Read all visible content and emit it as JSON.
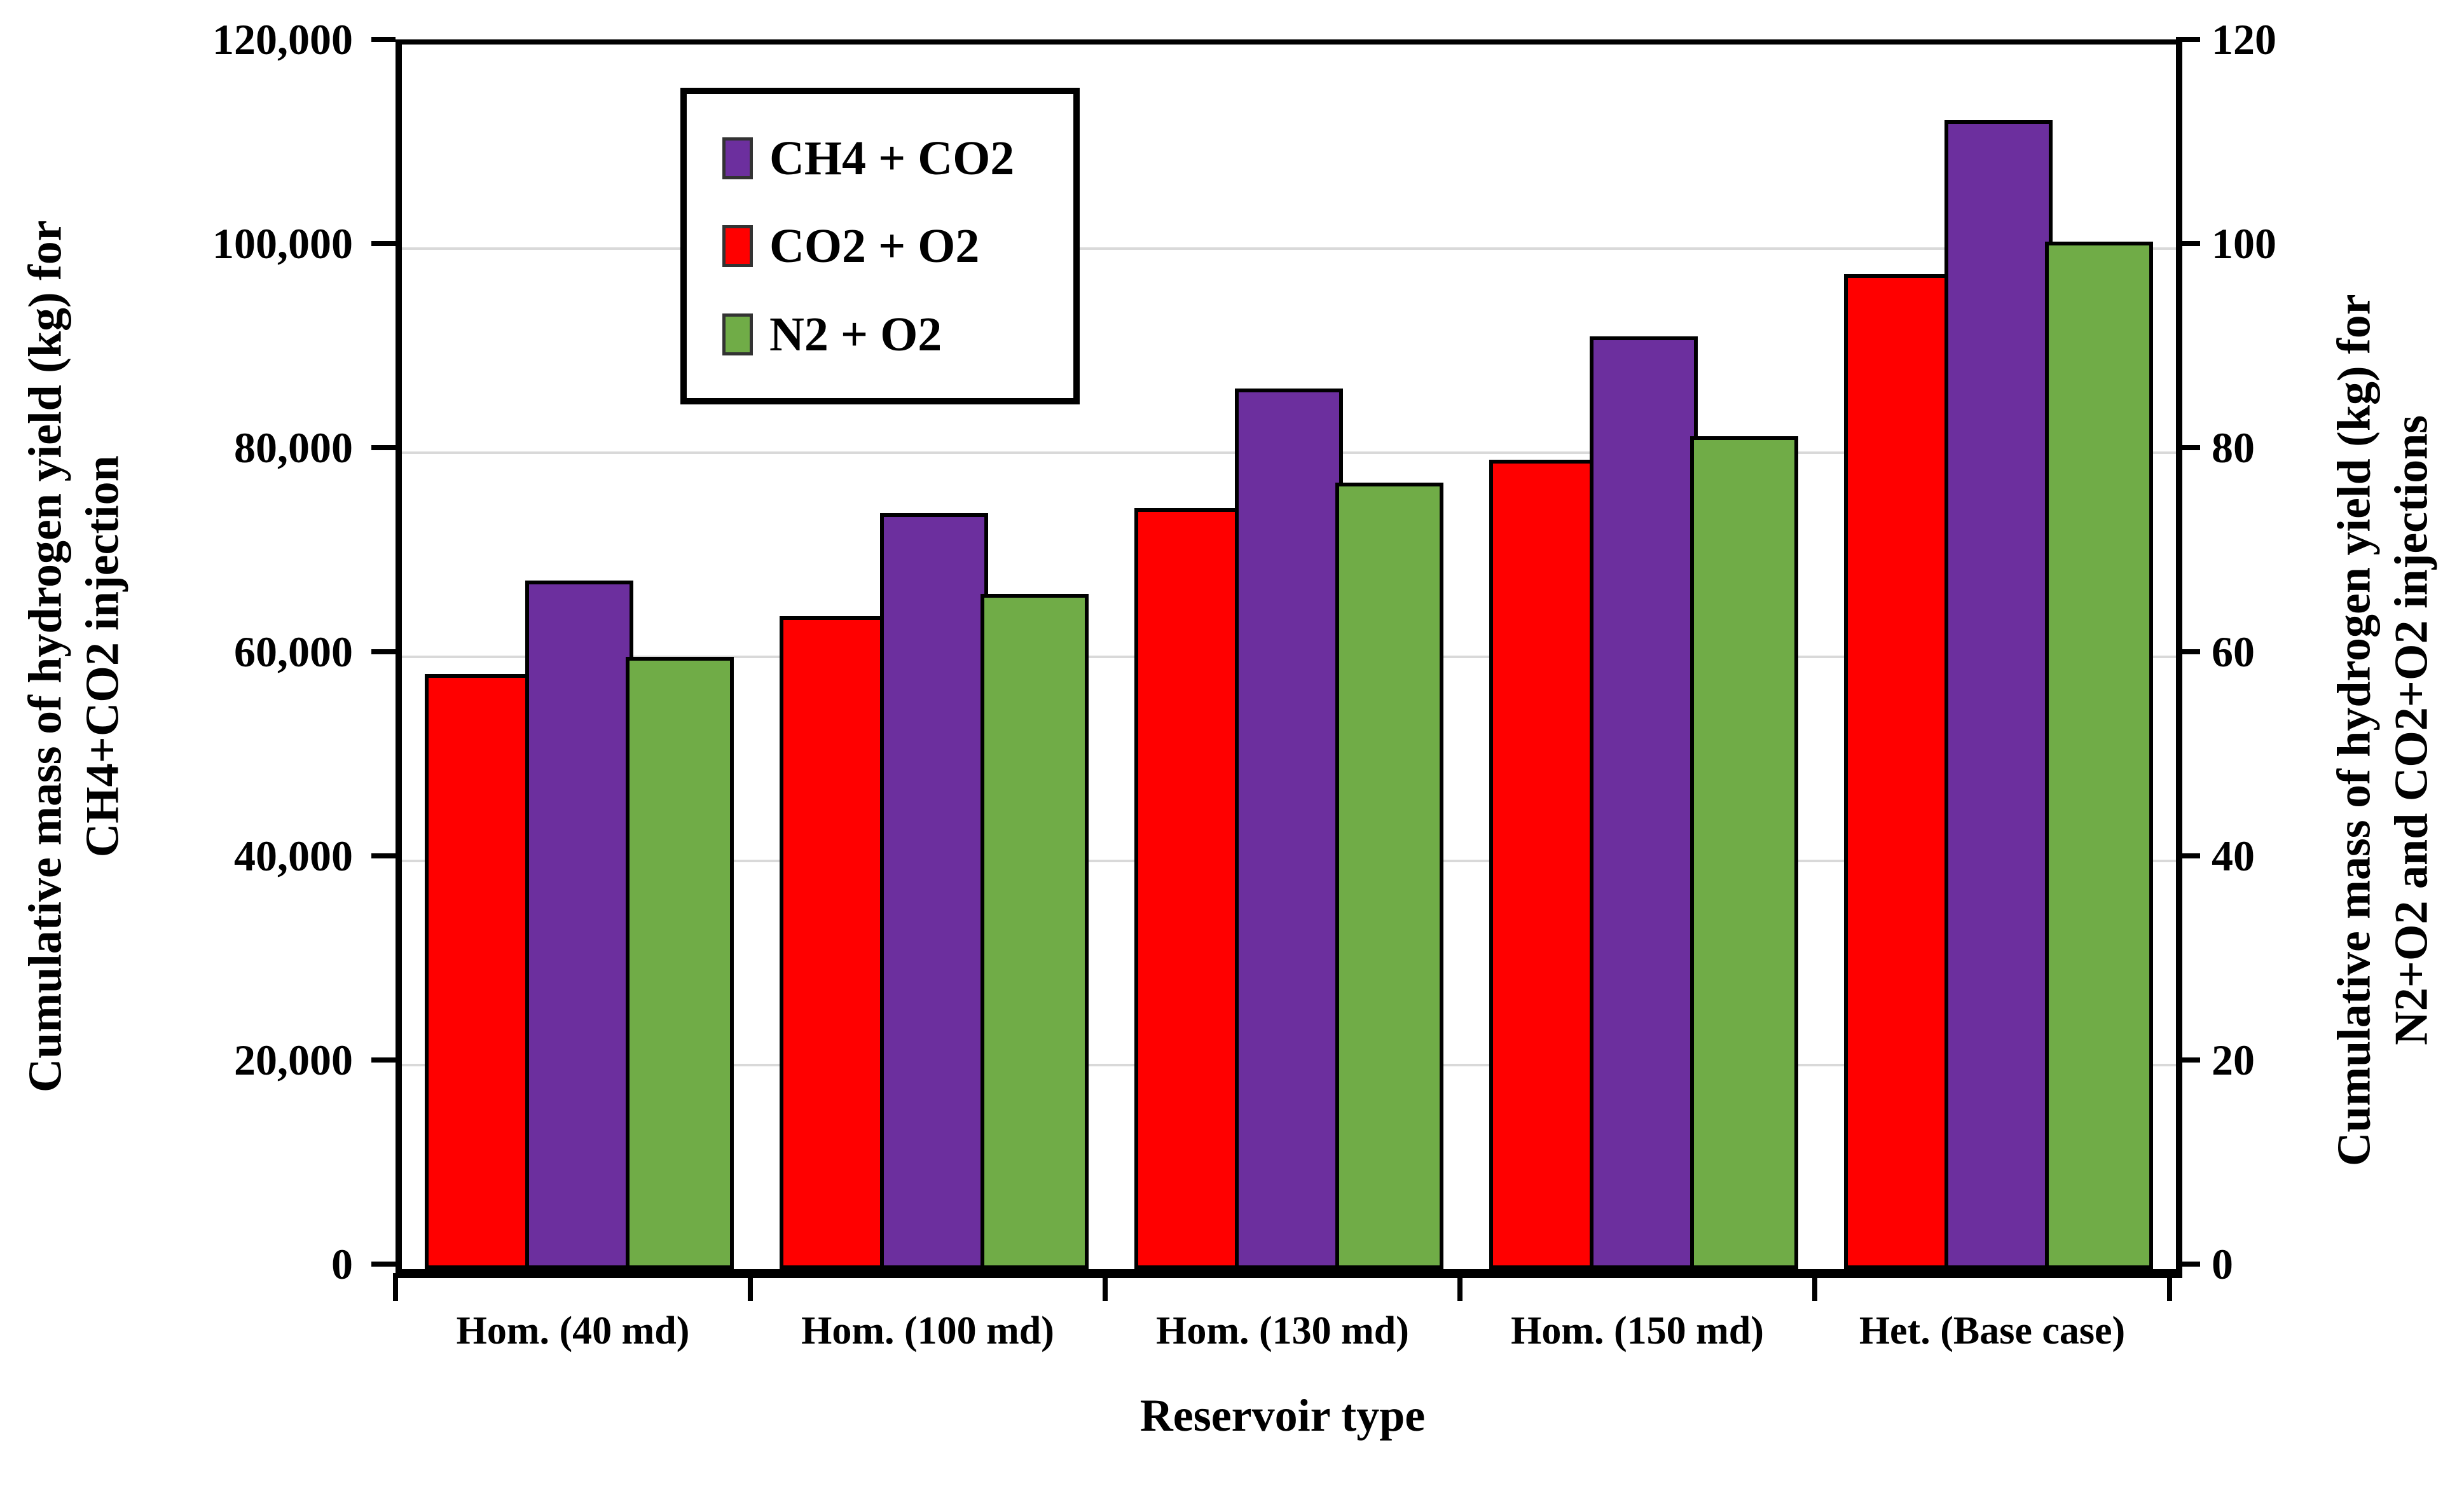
{
  "chart_data": {
    "type": "bar",
    "title": "",
    "categories": [
      "Hom. (40 md)",
      "Hom. (100 md)",
      "Hom. (130 md)",
      "Hom. (150 md)",
      "Het. (Base case)"
    ],
    "series": [
      {
        "name": "CH4 + CO2",
        "color": "#6C2F9E",
        "values_kg": [
          67500,
          74100,
          86300,
          91400,
          112600
        ],
        "values_right_axis": [
          67.5,
          74.1,
          86.3,
          91.4,
          112.6
        ]
      },
      {
        "name": "CO2 + O2",
        "color": "#FF0000",
        "values_kg": [
          58300,
          64000,
          74600,
          79300,
          97500
        ],
        "values_right_axis": [
          58.3,
          64.0,
          74.6,
          79.3,
          97.5
        ]
      },
      {
        "name": "N2 + O2",
        "color": "#70AC47",
        "values_kg": [
          60000,
          66200,
          77100,
          81600,
          100700
        ],
        "values_right_axis": [
          60.0,
          66.2,
          77.1,
          81.6,
          100.7
        ]
      }
    ],
    "bar_draw_order": [
      "CO2 + O2",
      "CH4 + CO2",
      "N2 + O2"
    ],
    "legend": [
      "CH4 + CO2",
      "CO2 + O2",
      "N2 + O2"
    ],
    "legend_position": "inside-top-left",
    "xlabel": "Reservoir type",
    "ylabel_left": "Cumulative mass of hydrogen yield (kg) for\nCH4+CO2 injection",
    "ylabel_right": "Cumulative mass of hydrogen yield (kg) for\nN2+O2 and CO2+O2 injections",
    "ylim_left": [
      0,
      120000
    ],
    "ylim_right": [
      0,
      120
    ],
    "y_left_ticks": [
      "0",
      "20,000",
      "40,000",
      "60,000",
      "80,000",
      "100,000",
      "120,000"
    ],
    "y_right_ticks": [
      "0",
      "20",
      "40",
      "60",
      "80",
      "100",
      "120"
    ],
    "grid": "horizontal gridlines every 20,000 (light gray), black top frame"
  },
  "colors": {
    "background": "#FFFFFF",
    "axis": "#000000",
    "gridline": "#D9D9D9",
    "text": "#000000",
    "series_ch4_co2": "#6C2F9E",
    "series_co2_o2": "#FF0000",
    "series_n2_o2": "#70AC47"
  }
}
